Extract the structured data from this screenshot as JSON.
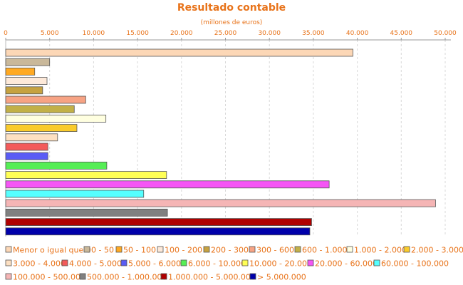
{
  "chart_data": {
    "type": "bar",
    "orientation": "horizontal",
    "title": "Resultado contable",
    "subtitle": "(millones de euros)",
    "xlabel": "",
    "ylabel": "",
    "xlim": [
      0,
      50000
    ],
    "x_ticks": [
      "0",
      "5.000",
      "10.000",
      "15.000",
      "20.000",
      "25.000",
      "30.000",
      "35.000",
      "40.000",
      "45.000",
      "50.000"
    ],
    "x_axis_position": "top",
    "grid": true,
    "legend_position": "bottom",
    "series": [
      {
        "name": "Menor o igual que 0",
        "value": 39500,
        "color": "#fcd7b6"
      },
      {
        "name": "0 - 50",
        "value": 5000,
        "color": "#c9b89a"
      },
      {
        "name": "50 - 100",
        "value": 3300,
        "color": "#ffa922"
      },
      {
        "name": "100 - 200",
        "value": 4700,
        "color": "#fde9d9"
      },
      {
        "name": "200 - 300",
        "value": 4200,
        "color": "#c6a240"
      },
      {
        "name": "300 - 600",
        "value": 9100,
        "color": "#f7a384"
      },
      {
        "name": "600 - 1.000",
        "value": 7800,
        "color": "#c2b048"
      },
      {
        "name": "1.000 - 2.000",
        "value": 11400,
        "color": "#ffffe0"
      },
      {
        "name": "2.000 - 3.000",
        "value": 8100,
        "color": "#f9cb2c"
      },
      {
        "name": "3.000 - 4.000",
        "value": 5900,
        "color": "#fde0c2"
      },
      {
        "name": "4.000 - 5.000",
        "value": 4800,
        "color": "#f35a5a"
      },
      {
        "name": "5.000 - 6.000",
        "value": 4800,
        "color": "#5a5cf5"
      },
      {
        "name": "6.000 - 10.000",
        "value": 11500,
        "color": "#55ee55"
      },
      {
        "name": "10.000 - 20.000",
        "value": 18300,
        "color": "#ffff55"
      },
      {
        "name": "20.000 - 60.000",
        "value": 36800,
        "color": "#f555f5"
      },
      {
        "name": "60.000 - 100.000",
        "value": 15700,
        "color": "#55ffff"
      },
      {
        "name": "100.000 - 500.000",
        "value": 48900,
        "color": "#f5b5b5"
      },
      {
        "name": "500.000 - 1.000.000",
        "value": 18400,
        "color": "#808080"
      },
      {
        "name": "1.000.000 - 5.000.000",
        "value": 34800,
        "color": "#b00000"
      },
      {
        "name": "> 5.000.000",
        "value": 34600,
        "color": "#0000aa"
      }
    ]
  }
}
